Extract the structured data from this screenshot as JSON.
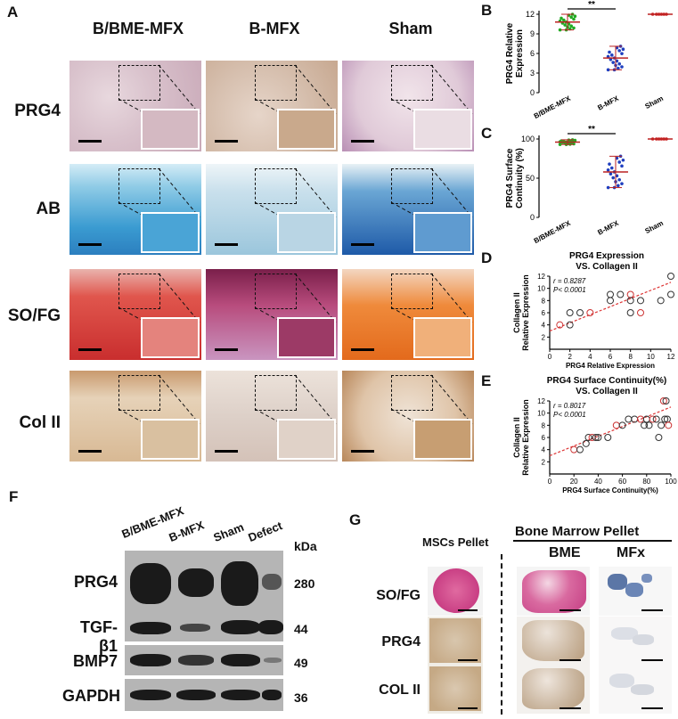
{
  "panel_a": {
    "letter": "A",
    "columns": [
      "B/BME-MFX",
      "B-MFX",
      "Sham"
    ],
    "rows": [
      "PRG4",
      "AB",
      "SO/FG",
      "Col II"
    ]
  },
  "panel_f": {
    "letter": "F",
    "lanes": [
      "B/BME-MFX",
      "B-MFX",
      "Sham",
      "Defect"
    ],
    "kda_label": "kDa",
    "blots": [
      {
        "protein": "PRG4",
        "kda": "280"
      },
      {
        "protein": "TGF-β1",
        "kda": "44"
      },
      {
        "protein": "BMP7",
        "kda": "49"
      },
      {
        "protein": "GAPDH",
        "kda": "36"
      }
    ]
  },
  "panel_g": {
    "letter": "G",
    "group_left": "MSCs Pellet",
    "group_right": "Bone Marrow Pellet",
    "subcols": [
      "BME",
      "MFx"
    ],
    "rows": [
      "SO/FG",
      "PRG4",
      "COL II"
    ]
  },
  "chart_data": [
    {
      "panel": "B",
      "type": "scatter",
      "title": "",
      "ylabel": "PRG4 Relative Expression",
      "ylim": [
        0,
        12
      ],
      "yticks": [
        "0",
        "3",
        "6",
        "9",
        "12"
      ],
      "categories": [
        "B/BME-MFX",
        "B-MFX",
        "Sham"
      ],
      "means": [
        10.8,
        5.3,
        12
      ],
      "sd": [
        1.2,
        1.8,
        0
      ],
      "significance": "**",
      "colors": [
        "#22aa22",
        "#1f3fbf",
        "#cc2222"
      ]
    },
    {
      "panel": "C",
      "type": "scatter",
      "title": "",
      "ylabel": "PRG4 Surface Continuity (%)",
      "ylim": [
        0,
        100
      ],
      "yticks": [
        "0",
        "50",
        "100"
      ],
      "categories": [
        "B/BME-MFX",
        "B-MFX",
        "Sham"
      ],
      "means": [
        96,
        58,
        100
      ],
      "sd": [
        3,
        20,
        0
      ],
      "significance": "**",
      "colors": [
        "#22aa22",
        "#1f3fbf",
        "#cc2222"
      ]
    },
    {
      "panel": "D",
      "type": "scatter",
      "title": "PRG4 Expression VS. Collagen II",
      "xlabel": "PRG4 Relative Expression",
      "ylabel": "Collagen II Relative Expression",
      "xlim": [
        0,
        12
      ],
      "ylim": [
        0,
        12
      ],
      "xticks": [
        "0",
        "2",
        "4",
        "6",
        "8",
        "10",
        "12"
      ],
      "yticks": [
        "2",
        "4",
        "6",
        "8",
        "10",
        "12"
      ],
      "annotation_r": "r = 0.8287",
      "annotation_p": "P< 0.0001",
      "x": [
        1,
        2,
        2,
        3,
        4,
        6,
        6,
        7,
        8,
        8,
        8,
        9,
        9,
        11,
        12,
        12
      ],
      "y": [
        4,
        4,
        6,
        6,
        6,
        9,
        8,
        9,
        9,
        8,
        6,
        8,
        6,
        8,
        12,
        9
      ]
    },
    {
      "panel": "E",
      "type": "scatter",
      "title": "PRG4 Surface Continuity(%) VS. Collagen II",
      "xlabel": "PRG4 Surface Continuity(%)",
      "ylabel": "Collagen II Relative Expression",
      "xlim": [
        0,
        100
      ],
      "ylim": [
        0,
        12
      ],
      "xticks": [
        "0",
        "20",
        "40",
        "60",
        "80",
        "100"
      ],
      "yticks": [
        "2",
        "4",
        "6",
        "8",
        "10",
        "12"
      ],
      "annotation_r": "r = 0.8017",
      "annotation_p": "P< 0.0001",
      "x": [
        20,
        25,
        30,
        32,
        35,
        38,
        40,
        48,
        55,
        60,
        65,
        70,
        75,
        78,
        80,
        82,
        85,
        88,
        90,
        92,
        94,
        95,
        96,
        97,
        98
      ],
      "y": [
        4,
        4,
        5,
        6,
        6,
        6,
        6,
        6,
        8,
        8,
        9,
        9,
        9,
        8,
        9,
        8,
        9,
        9,
        6,
        8,
        12,
        9,
        12,
        9,
        8
      ]
    }
  ]
}
